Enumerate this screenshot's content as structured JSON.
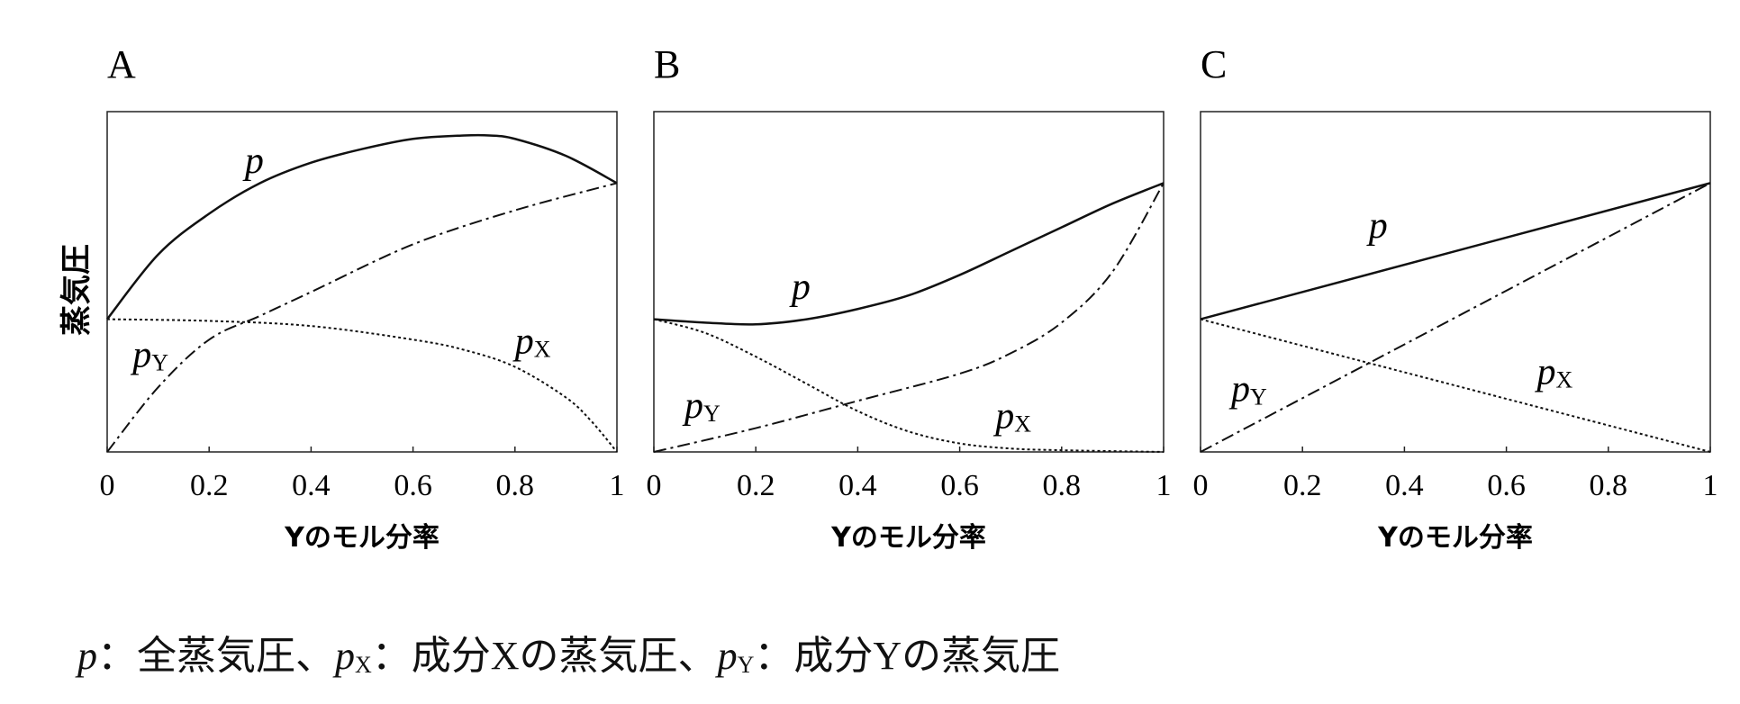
{
  "chart_data": [
    {
      "type": "line",
      "title": "A",
      "xlabel": "Yのモル分率",
      "ylabel": "蒸気圧",
      "xlim": [
        0,
        1
      ],
      "ylim": [
        0,
        1
      ],
      "xticks": [
        "0",
        "0.2",
        "0.4",
        "0.6",
        "0.8",
        "1"
      ],
      "grid": false,
      "series": [
        {
          "name": "p",
          "style": "solid",
          "x": [
            0,
            0.1,
            0.2,
            0.3,
            0.4,
            0.5,
            0.6,
            0.7,
            0.75,
            0.8,
            0.9,
            1
          ],
          "y": [
            0.39,
            0.58,
            0.7,
            0.79,
            0.85,
            0.89,
            0.92,
            0.93,
            0.93,
            0.92,
            0.87,
            0.79
          ]
        },
        {
          "name": "pY",
          "style": "dashdot",
          "x": [
            0,
            0.1,
            0.2,
            0.3,
            0.4,
            0.6,
            0.8,
            1
          ],
          "y": [
            0,
            0.19,
            0.33,
            0.4,
            0.47,
            0.61,
            0.71,
            0.79
          ]
        },
        {
          "name": "pX",
          "style": "dotted",
          "x": [
            0,
            0.2,
            0.4,
            0.6,
            0.7,
            0.8,
            0.9,
            0.95,
            1
          ],
          "y": [
            0.39,
            0.385,
            0.37,
            0.33,
            0.3,
            0.25,
            0.16,
            0.09,
            0
          ]
        }
      ]
    },
    {
      "type": "line",
      "title": "B",
      "xlabel": "Yのモル分率",
      "ylabel": "",
      "xlim": [
        0,
        1
      ],
      "ylim": [
        0,
        1
      ],
      "xticks": [
        "0",
        "0.2",
        "0.4",
        "0.6",
        "0.8",
        "1"
      ],
      "grid": false,
      "series": [
        {
          "name": "p",
          "style": "solid",
          "x": [
            0,
            0.1,
            0.2,
            0.3,
            0.4,
            0.5,
            0.6,
            0.7,
            0.8,
            0.9,
            1
          ],
          "y": [
            0.39,
            0.38,
            0.375,
            0.39,
            0.42,
            0.46,
            0.52,
            0.59,
            0.66,
            0.73,
            0.79
          ]
        },
        {
          "name": "pY",
          "style": "dashdot",
          "x": [
            0,
            0.2,
            0.4,
            0.6,
            0.7,
            0.8,
            0.9,
            1
          ],
          "y": [
            0,
            0.07,
            0.15,
            0.23,
            0.29,
            0.38,
            0.53,
            0.79
          ]
        },
        {
          "name": "pX",
          "style": "dotted",
          "x": [
            0,
            0.1,
            0.2,
            0.3,
            0.4,
            0.5,
            0.6,
            0.7,
            0.8,
            1
          ],
          "y": [
            0.39,
            0.35,
            0.28,
            0.2,
            0.12,
            0.06,
            0.025,
            0.01,
            0.005,
            0
          ]
        }
      ]
    },
    {
      "type": "line",
      "title": "C",
      "xlabel": "Yのモル分率",
      "ylabel": "",
      "xlim": [
        0,
        1
      ],
      "ylim": [
        0,
        1
      ],
      "xticks": [
        "0",
        "0.2",
        "0.4",
        "0.6",
        "0.8",
        "1"
      ],
      "grid": false,
      "series": [
        {
          "name": "p",
          "style": "solid",
          "x": [
            0,
            1
          ],
          "y": [
            0.39,
            0.79
          ]
        },
        {
          "name": "pY",
          "style": "dashdot",
          "x": [
            0,
            1
          ],
          "y": [
            0,
            0.79
          ]
        },
        {
          "name": "pX",
          "style": "dotted",
          "x": [
            0,
            1
          ],
          "y": [
            0.39,
            0
          ]
        }
      ]
    }
  ],
  "footer": {
    "p": "p",
    "sep1": "：全蒸気圧、",
    "px": "p",
    "px_sub": "X",
    "sep2": "：成分Xの蒸気圧、",
    "py": "p",
    "py_sub": "Y",
    "sep3": "：成分Yの蒸気圧"
  }
}
